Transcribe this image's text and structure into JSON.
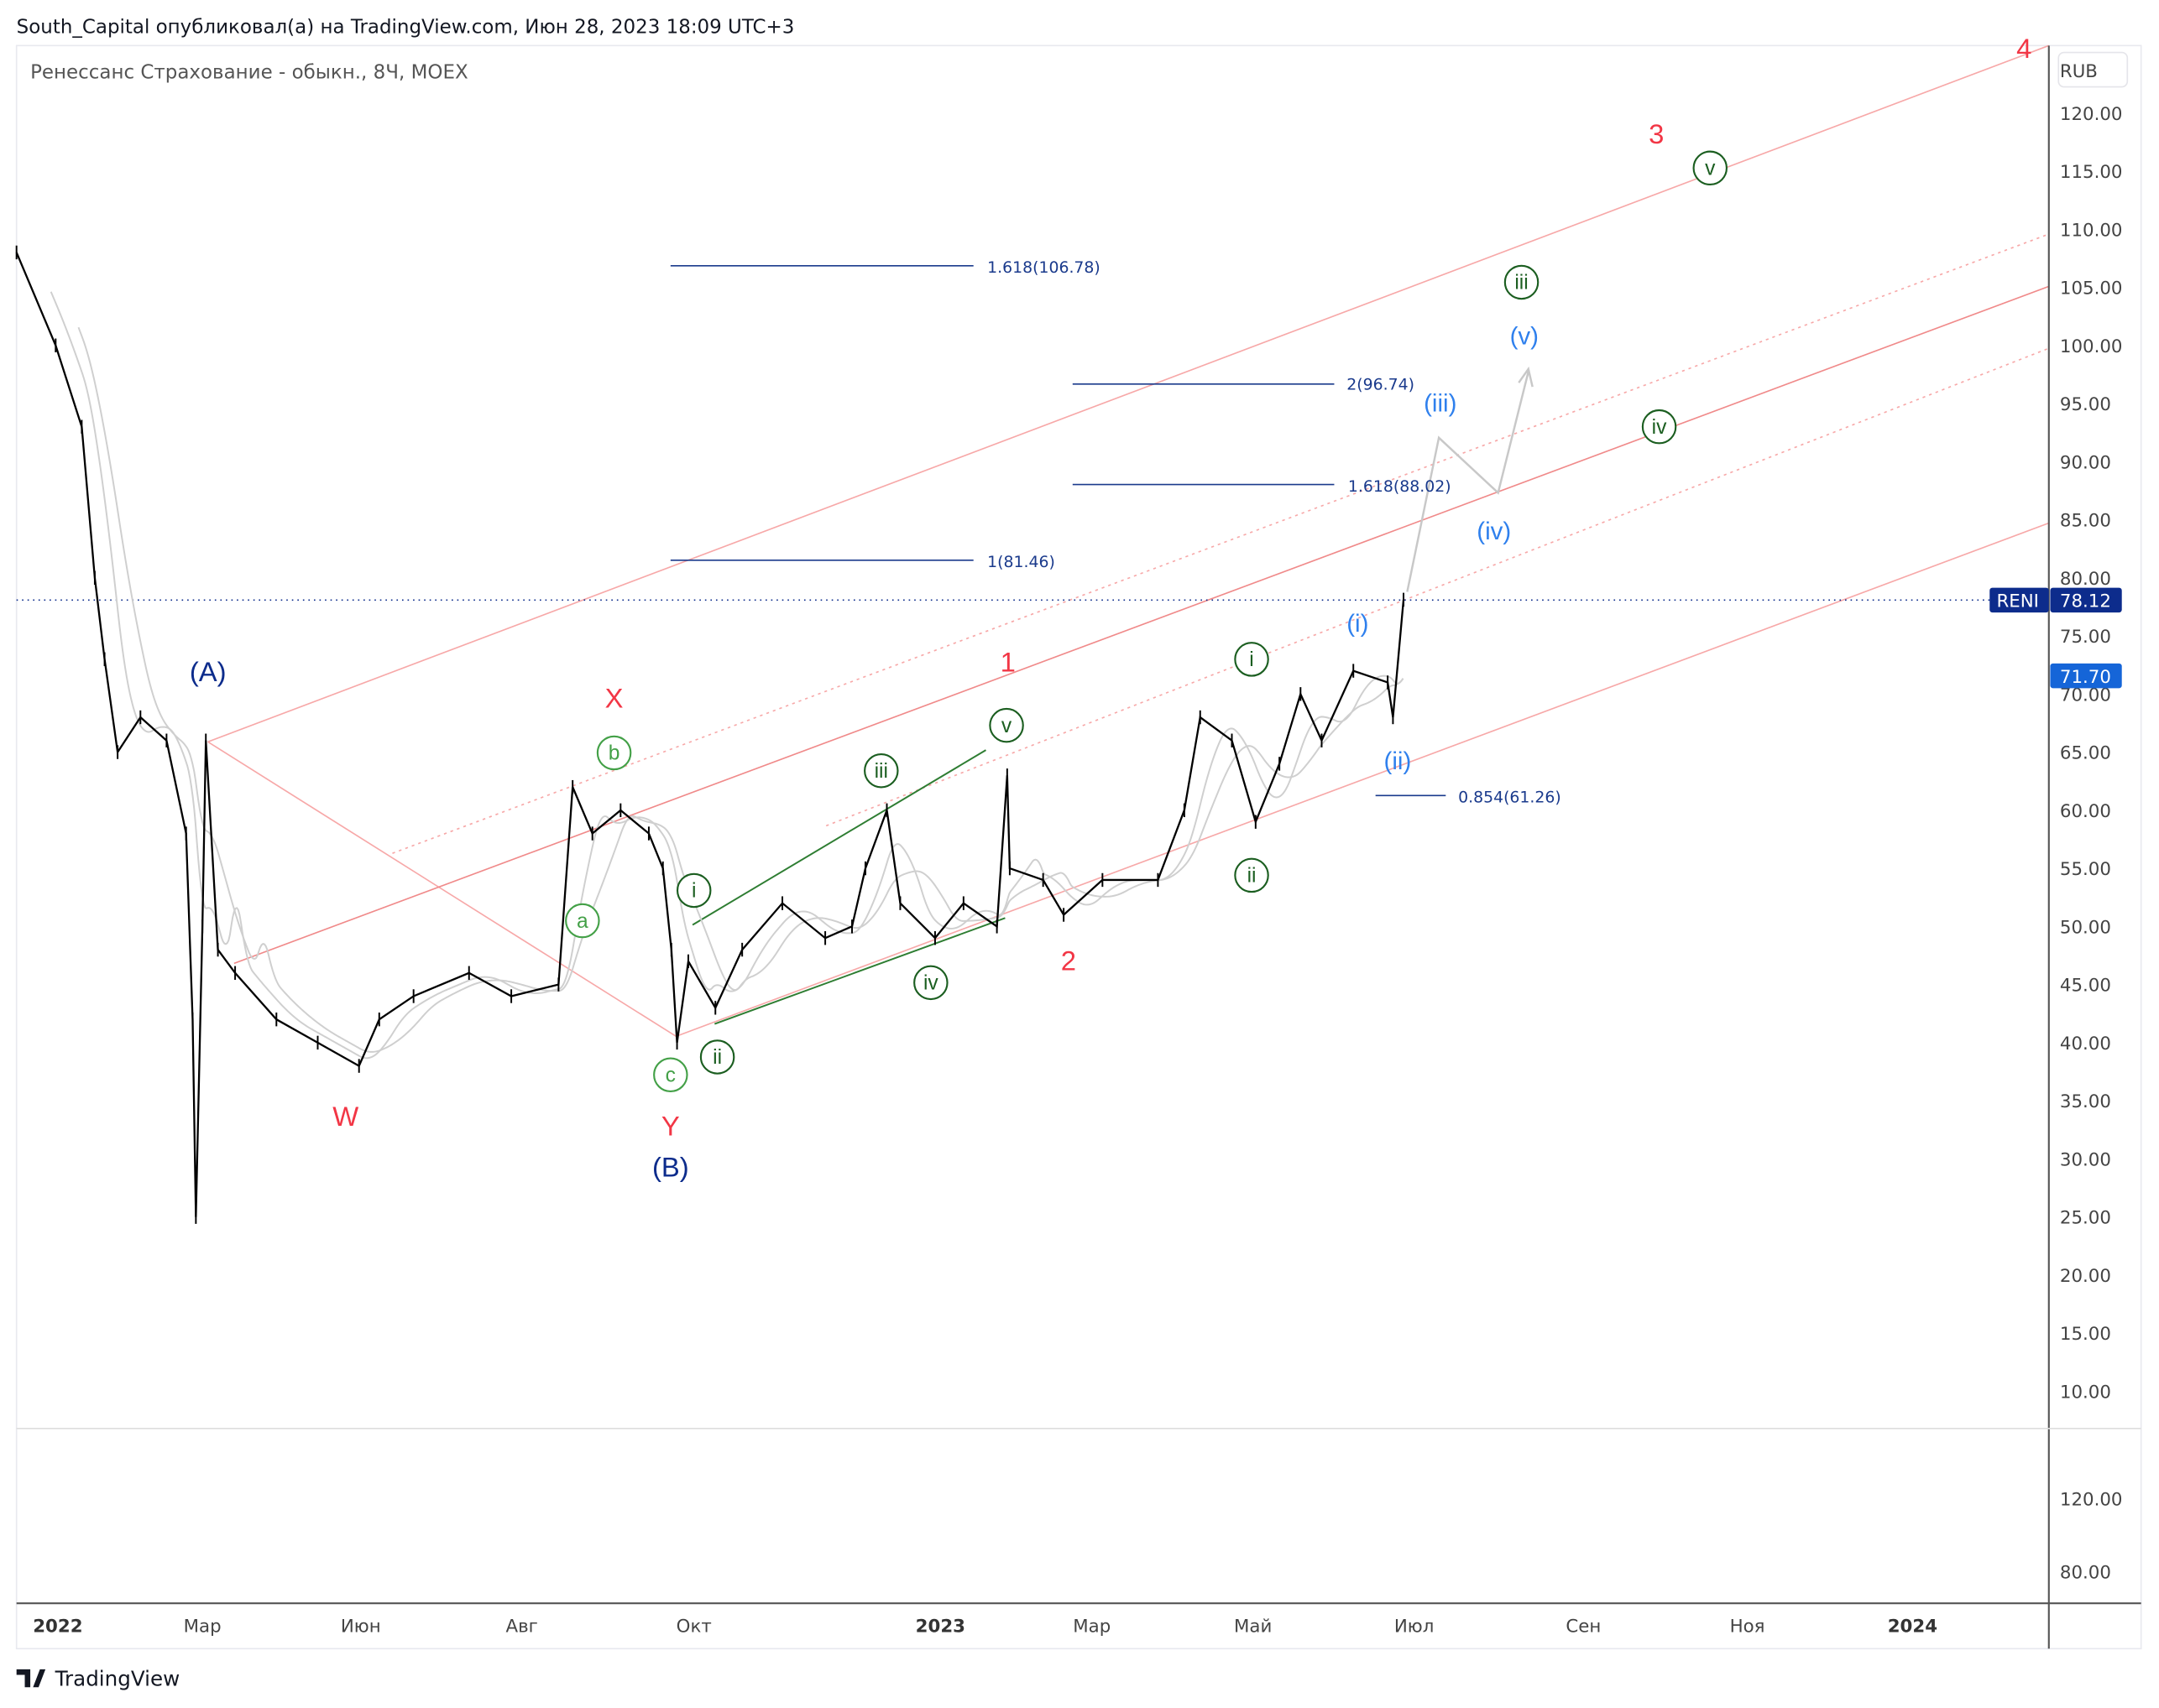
{
  "header": {
    "published": "South_Capital опубликовал(а) на TradingView.com, Июн 28, 2023 18:09 UTC+3",
    "symbol_title": "Ренессанс Страхование - обыкн., 8Ч, MOEX",
    "footer_logo": "TradingView"
  },
  "price_axis": {
    "currency": "RUB",
    "ticks": [
      "120.00",
      "115.00",
      "110.00",
      "105.00",
      "100.00",
      "95.00",
      "90.00",
      "85.00",
      "80.00",
      "75.00",
      "70.00",
      "65.00",
      "60.00",
      "55.00",
      "50.00",
      "45.00",
      "40.00",
      "35.00",
      "30.00",
      "25.00",
      "20.00",
      "15.00",
      "10.00"
    ],
    "ticker_label": "RENI",
    "last_price": "78.12",
    "second_price": "71.70"
  },
  "volume_axis": {
    "ticks": [
      "120.00",
      "80.00"
    ]
  },
  "time_axis": {
    "ticks": [
      "2022",
      "Мар",
      "Июн",
      "Авг",
      "Окт",
      "2023",
      "Мар",
      "Май",
      "Июл",
      "Сен",
      "Ноя",
      "2024"
    ]
  },
  "colors": {
    "wave_red": "#f23645",
    "wave_navy": "#0d2c8c",
    "wave_blue": "#2f80ed",
    "wave_green": "#1b5e20",
    "wave_green_light": "#43a047",
    "channel": "#f7a8a8",
    "fib": "#1a3a8c",
    "last_price_bg": "#0d2c8c",
    "second_price_bg": "#1565d8"
  },
  "fib_levels": [
    "1.618(106.78)",
    "2(96.74)",
    "1.618(88.02)",
    "1(81.46)",
    "0.854(61.26)"
  ],
  "waves": {
    "red": [
      "4",
      "3",
      "X",
      "1",
      "2",
      "W",
      "Y"
    ],
    "navy": [
      "(A)",
      "(B)"
    ],
    "blue": [
      "(v)",
      "(iii)",
      "(iv)",
      "(i)",
      "(ii)"
    ],
    "green": [
      "v",
      "iii",
      "iv",
      "i",
      "ii",
      "v",
      "iii",
      "iv",
      "ii",
      "i"
    ],
    "green_light": [
      "b",
      "a",
      "c"
    ]
  },
  "chart_data": {
    "type": "line",
    "title": "Ренессанс Страхование - обыкн., 8Ч, MOEX",
    "ylabel": "RUB",
    "ylim": [
      10,
      125
    ],
    "xlim": [
      "2022-01-03",
      "2024-01-31"
    ],
    "grid": false,
    "series": [
      {
        "values": [
          [
            "2022-01-03",
            108
          ],
          [
            "2022-01-15",
            100
          ],
          [
            "2022-01-23",
            93
          ],
          [
            "2022-01-27",
            80
          ],
          [
            "2022-01-30",
            73
          ],
          [
            "2022-02-03",
            65
          ],
          [
            "2022-02-10",
            68
          ],
          [
            "2022-02-18",
            66
          ],
          [
            "2022-02-24",
            58
          ],
          [
            "2022-02-26",
            42
          ],
          [
            "2022-02-27",
            25
          ],
          [
            "2022-03-01",
            50
          ],
          [
            "2022-03-03",
            66
          ],
          [
            "2022-03-10",
            48
          ],
          [
            "2022-03-20",
            46
          ],
          [
            "2022-04-13",
            42
          ],
          [
            "2022-05-07",
            40
          ],
          [
            "2022-05-31",
            38
          ],
          [
            "2022-06-08",
            42
          ],
          [
            "2022-06-21",
            44
          ],
          [
            "2022-07-12",
            46
          ],
          [
            "2022-07-28",
            44
          ],
          [
            "2022-08-14",
            45
          ],
          [
            "2022-08-19",
            62
          ],
          [
            "2022-08-26",
            58
          ],
          [
            "2022-09-05",
            60
          ],
          [
            "2022-09-15",
            58
          ],
          [
            "2022-09-20",
            55
          ],
          [
            "2022-09-23",
            48
          ],
          [
            "2022-09-25",
            40
          ],
          [
            "2022-09-29",
            47
          ],
          [
            "2022-10-09",
            43
          ],
          [
            "2022-10-19",
            48
          ],
          [
            "2022-11-03",
            52
          ],
          [
            "2022-11-19",
            49
          ],
          [
            "2022-11-29",
            50
          ],
          [
            "2022-12-04",
            55
          ],
          [
            "2022-12-12",
            60
          ],
          [
            "2022-12-17",
            52
          ],
          [
            "2022-12-30",
            49
          ],
          [
            "2023-01-10",
            52
          ],
          [
            "2023-01-23",
            50
          ],
          [
            "2023-01-27",
            63
          ],
          [
            "2023-01-28",
            55
          ],
          [
            "2023-02-10",
            54
          ],
          [
            "2023-02-18",
            51
          ],
          [
            "2023-03-05",
            54
          ],
          [
            "2023-03-26",
            54
          ],
          [
            "2023-04-05",
            60
          ],
          [
            "2023-04-11",
            68
          ],
          [
            "2023-04-23",
            66
          ],
          [
            "2023-05-02",
            59
          ],
          [
            "2023-05-11",
            64
          ],
          [
            "2023-05-19",
            70
          ],
          [
            "2023-05-27",
            66
          ],
          [
            "2023-06-08",
            72
          ],
          [
            "2023-06-21",
            71
          ],
          [
            "2023-06-23",
            68
          ],
          [
            "2023-06-27",
            78.12
          ]
        ]
      }
    ]
  }
}
